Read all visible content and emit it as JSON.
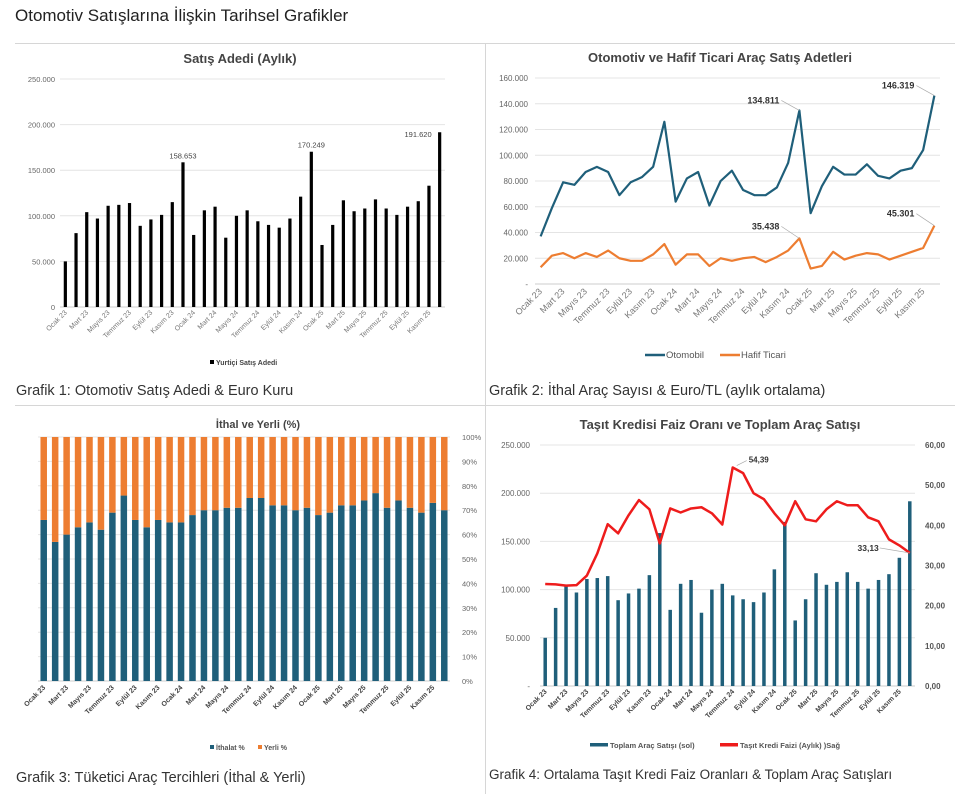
{
  "page_title": "Otomotiv Satışlarına İlişkin Tarihsel Grafikler",
  "captions": [
    "Grafik 1: Otomotiv Satış Adedi & Euro Kuru",
    "Grafik 2: İthal Araç Sayısı & Euro/TL (aylık ortalama)",
    "Grafik 3: Tüketici Araç Tercihleri (İthal & Yerli)",
    "Grafik 4: Ortalama Taşıt Kredi Faiz Oranları & Toplam Araç Satışları"
  ],
  "months_labels": [
    "Ocak 23",
    "Mart 23",
    "Mayıs 23",
    "Temmuz 23",
    "Eylül 23",
    "Kasım 23",
    "Ocak 24",
    "Mart 24",
    "Mayıs 24",
    "Temmuz 24",
    "Eylül 24",
    "Kasım 24",
    "Ocak 25",
    "Mart 25",
    "Mayıs 25",
    "Temmuz 25",
    "Eylül 25",
    "Kasım 25"
  ],
  "chart_data": [
    {
      "type": "bar",
      "title": "Satış Adedi (Aylık)",
      "ylim": [
        0,
        250000
      ],
      "yticks": [
        "0",
        "50.000",
        "100.000",
        "150.000",
        "200.000",
        "250.000"
      ],
      "grid": true,
      "legend": "bottom",
      "color": "#000000",
      "series": [
        {
          "name": "Yurtiçi Satış Adedi",
          "values": [
            50000,
            81000,
            104000,
            97000,
            111000,
            112000,
            114000,
            89000,
            96000,
            101000,
            115000,
            158653,
            79000,
            106000,
            110000,
            76000,
            100000,
            106000,
            94000,
            90000,
            87000,
            97000,
            121000,
            170249,
            68000,
            90000,
            117000,
            105000,
            108000,
            118000,
            108000,
            101000,
            110000,
            116000,
            133000,
            191620
          ]
        }
      ],
      "data_labels": [
        {
          "index": 11,
          "text": "158.653"
        },
        {
          "index": 23,
          "text": "170.249"
        },
        {
          "index": 35,
          "text": "191.620"
        }
      ]
    },
    {
      "type": "line",
      "title": "Otomotiv ve Hafif Ticari Araç Satış Adetleri",
      "ylim": [
        0,
        160000
      ],
      "yticks": [
        "-",
        "20.000",
        "40.000",
        "60.000",
        "80.000",
        "100.000",
        "120.000",
        "140.000",
        "160.000"
      ],
      "grid": true,
      "legend": "bottom",
      "series": [
        {
          "name": "Otomobil",
          "color": "#1f5f7a",
          "values": [
            37000,
            59000,
            79000,
            77000,
            87000,
            91000,
            87000,
            69000,
            79000,
            83000,
            91000,
            126000,
            64000,
            82000,
            87000,
            61000,
            80000,
            88000,
            73000,
            69000,
            69000,
            75000,
            94000,
            134811,
            55000,
            76000,
            91000,
            85000,
            85000,
            93000,
            84000,
            82000,
            88000,
            90000,
            104000,
            146319
          ]
        },
        {
          "name": "Hafif Ticari",
          "color": "#ed7d31",
          "values": [
            13000,
            22000,
            24000,
            20000,
            24000,
            21000,
            26000,
            20000,
            18000,
            18000,
            23000,
            31000,
            15000,
            23000,
            23000,
            14000,
            20000,
            18000,
            20000,
            21000,
            17000,
            21000,
            26000,
            35438,
            12000,
            14000,
            25000,
            19000,
            22000,
            24000,
            23000,
            19000,
            22000,
            25000,
            28000,
            45301
          ]
        }
      ],
      "data_labels": [
        {
          "series": 0,
          "index": 23,
          "text": "134.811"
        },
        {
          "series": 0,
          "index": 35,
          "text": "146.319"
        },
        {
          "series": 1,
          "index": 23,
          "text": "35.438"
        },
        {
          "series": 1,
          "index": 35,
          "text": "45.301"
        }
      ]
    },
    {
      "type": "bar",
      "stacked": true,
      "title": "İthal ve Yerli (%)",
      "ylim": [
        0,
        100
      ],
      "yticks": [
        "0%",
        "10%",
        "20%",
        "30%",
        "40%",
        "50%",
        "60%",
        "70%",
        "80%",
        "90%",
        "100%"
      ],
      "y_axis_side": "right",
      "grid": true,
      "legend": "bottom",
      "series": [
        {
          "name": "İthalat %",
          "color": "#1f5f7a",
          "values": [
            66,
            57,
            60,
            63,
            65,
            62,
            69,
            76,
            66,
            63,
            66,
            65,
            65,
            68,
            70,
            70,
            71,
            71,
            75,
            75,
            72,
            72,
            70,
            71,
            68,
            69,
            72,
            72,
            74,
            77,
            71,
            74,
            71,
            69,
            73,
            70
          ]
        },
        {
          "name": "Yerli %",
          "color": "#ed7d31",
          "values": [
            34,
            43,
            40,
            37,
            35,
            38,
            31,
            24,
            34,
            37,
            34,
            35,
            35,
            32,
            30,
            30,
            29,
            29,
            25,
            25,
            28,
            28,
            30,
            29,
            32,
            31,
            28,
            28,
            26,
            23,
            29,
            26,
            29,
            31,
            27,
            30
          ]
        }
      ]
    },
    {
      "type": "bar+line",
      "title": "Taşıt Kredisi Faiz Oranı ve Toplam Araç Satışı",
      "ylim": [
        0,
        250000
      ],
      "yticks": [
        "-",
        "50.000",
        "100.000",
        "150.000",
        "200.000",
        "250.000"
      ],
      "y2lim": [
        0,
        60
      ],
      "y2ticks": [
        "0,00",
        "10,00",
        "20,00",
        "30,00",
        "40,00",
        "50,00",
        "60,00"
      ],
      "grid": true,
      "legend": "bottom",
      "series": [
        {
          "name": "Toplam Araç Satışı (sol)",
          "color": "#1f5f7a",
          "axis": "left",
          "values": [
            50000,
            81000,
            104000,
            97000,
            111000,
            112000,
            114000,
            89000,
            96000,
            101000,
            115000,
            158653,
            79000,
            106000,
            110000,
            76000,
            100000,
            106000,
            94000,
            90000,
            87000,
            97000,
            121000,
            170249,
            68000,
            90000,
            117000,
            105000,
            108000,
            118000,
            108000,
            101000,
            110000,
            116000,
            133000,
            191620
          ]
        },
        {
          "name": "Taşıt Kredi Faizi (Aylık) )Sağ",
          "color": "#ee1c1c",
          "axis": "right",
          "values": [
            25.4,
            25.3,
            25.0,
            25.1,
            27.5,
            33.0,
            40.3,
            38.0,
            42.5,
            46.3,
            44.0,
            35.5,
            44.2,
            43.2,
            44.2,
            44.5,
            43.0,
            40.2,
            54.39,
            53.0,
            48.0,
            46.5,
            43.0,
            40.0,
            46.0,
            41.5,
            41.0,
            44.0,
            46.0,
            45.0,
            45.0,
            42.0,
            41.0,
            36.5,
            35.0,
            33.13
          ]
        }
      ],
      "data_labels": [
        {
          "series": 1,
          "index": 18,
          "text": "54,39"
        },
        {
          "series": 1,
          "index": 35,
          "text": "33,13"
        }
      ]
    }
  ]
}
